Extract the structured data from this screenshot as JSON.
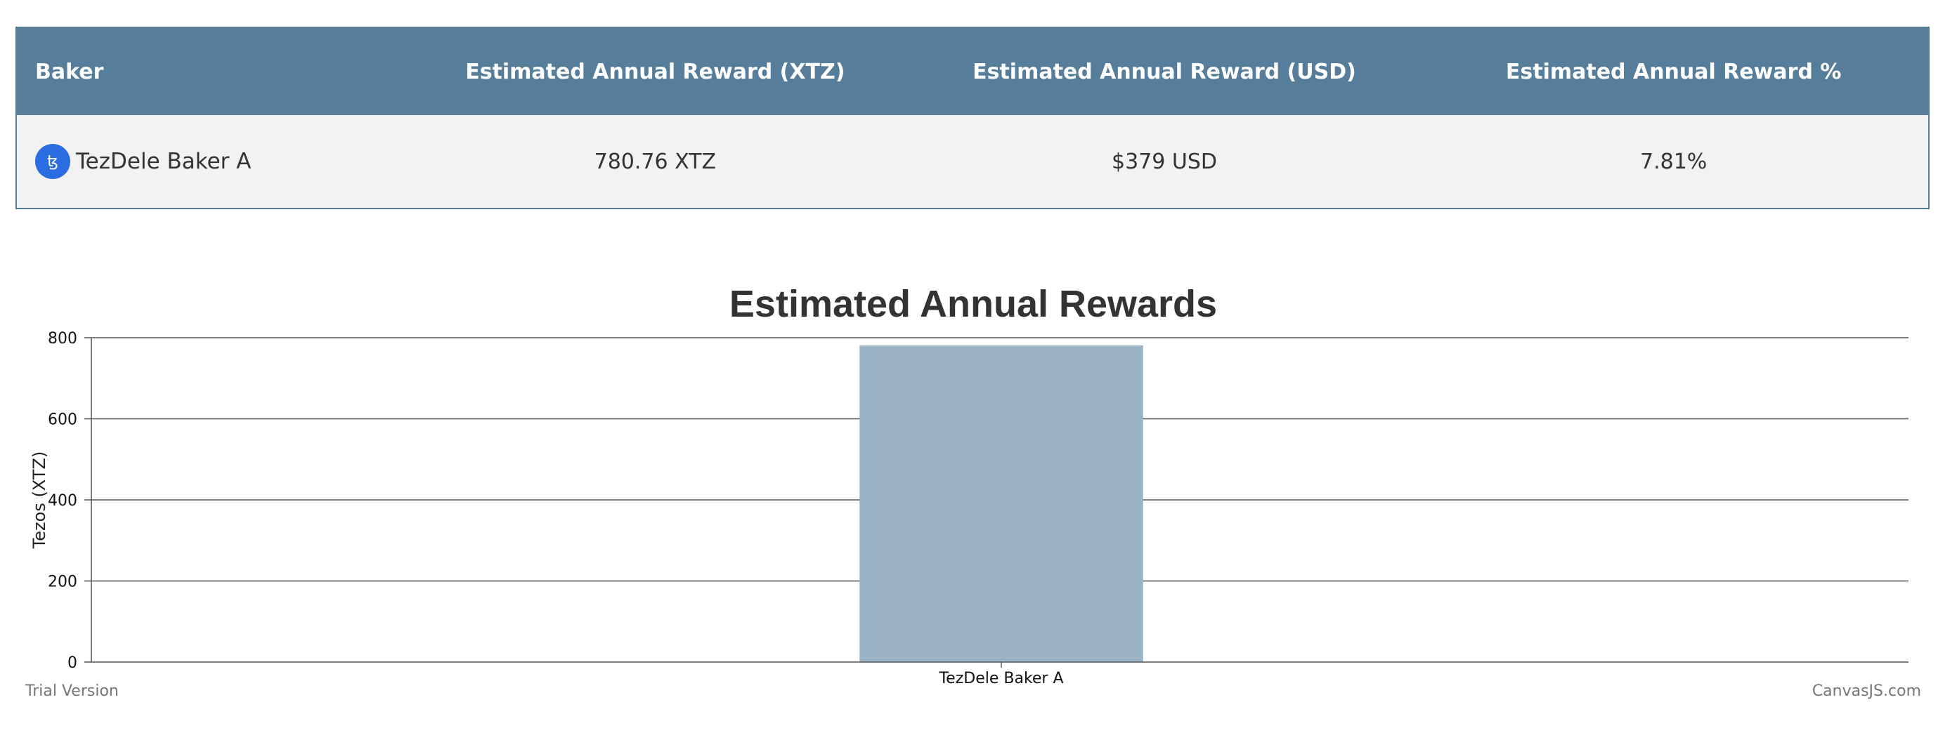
{
  "table": {
    "headers": [
      "Baker",
      "Estimated Annual Reward (XTZ)",
      "Estimated Annual Reward (USD)",
      "Estimated Annual Reward %"
    ],
    "rows": [
      {
        "baker": "TezDele Baker A",
        "logo_icon": "tezos-logo-icon",
        "reward_xtz": "780.76 XTZ",
        "reward_usd": "$379 USD",
        "reward_pct": "7.81%"
      }
    ]
  },
  "chart_data": {
    "type": "bar",
    "title": "Estimated Annual Rewards",
    "xlabel": "",
    "ylabel": "Tezos (XTZ)",
    "categories": [
      "TezDele Baker A"
    ],
    "values": [
      780.76
    ],
    "ylim": [
      0,
      800
    ],
    "yticks": [
      0,
      200,
      400,
      600,
      800
    ],
    "grid": true,
    "bar_color": "#9ab3c5"
  },
  "footer": {
    "left": "Trial Version",
    "right": "CanvasJS.com"
  },
  "colors": {
    "header_bg": "#567e9a",
    "row_bg": "#f2f2f2",
    "logo_bg": "#2a6de0"
  }
}
